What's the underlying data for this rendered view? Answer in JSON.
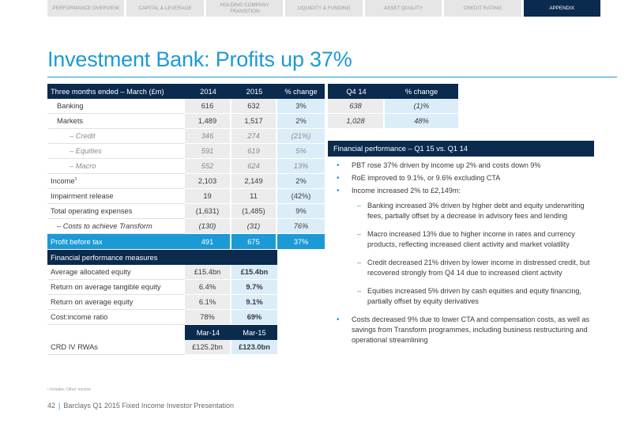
{
  "nav": {
    "tabs": [
      {
        "label": "PERFORMANCE OVERVIEW",
        "active": false
      },
      {
        "label": "CAPITAL & LEVERAGE",
        "active": false
      },
      {
        "label": "HOLDING COMPANY TRANSITION",
        "active": false
      },
      {
        "label": "LIQUIDITY & FUNDING",
        "active": false
      },
      {
        "label": "ASSET QUALITY",
        "active": false
      },
      {
        "label": "CREDIT RATING",
        "active": false
      },
      {
        "label": "APPENDIX",
        "active": true
      }
    ]
  },
  "title": "Investment Bank: Profits up 37%",
  "main_table": {
    "headers": [
      "Three months ended – March (£m)",
      "2014",
      "2015",
      "% change"
    ],
    "rows": [
      {
        "label": "Banking",
        "v2014": "616",
        "v2015": "632",
        "pct": "3%"
      },
      {
        "label": "Markets",
        "v2014": "1,489",
        "v2015": "1,517",
        "pct": "2%"
      },
      {
        "label": "–   Credit",
        "v2014": "346",
        "v2015": "274",
        "pct": "(21%)"
      },
      {
        "label": "–   Equities",
        "v2014": "591",
        "v2015": "619",
        "pct": "5%"
      },
      {
        "label": "–   Macro",
        "v2014": "552",
        "v2015": "624",
        "pct": "13%"
      },
      {
        "label": "Income",
        "v2014": "2,103",
        "v2015": "2,149",
        "pct": "2%"
      },
      {
        "label": "Impairment release",
        "v2014": "19",
        "v2015": "11",
        "pct": "(42%)"
      },
      {
        "label": "Total operating expenses",
        "v2014": "(1,631)",
        "v2015": "(1,485)",
        "pct": "9%"
      },
      {
        "label": "–   Costs to achieve Transform",
        "v2014": "(130)",
        "v2015": "(31)",
        "pct": "76%"
      },
      {
        "label": "Profit before tax",
        "v2014": "491",
        "v2015": "675",
        "pct": "37%"
      }
    ],
    "income_footnote_marker": "1"
  },
  "q4_table": {
    "headers": [
      "Q4 14",
      "% change"
    ],
    "rows": [
      {
        "value": "638",
        "pct": "(1)%"
      },
      {
        "value": "1,028",
        "pct": "48%"
      }
    ]
  },
  "measures": {
    "header": "Financial performance measures",
    "rows": [
      {
        "label": "Average allocated equity",
        "a": "£15.4bn",
        "b": "£15.4bn"
      },
      {
        "label": "Return on average tangible equity",
        "a": "6.4%",
        "b": "9.7%"
      },
      {
        "label": "Return on average equity",
        "a": "6.1%",
        "b": "9.1%"
      },
      {
        "label": "Cost:income ratio",
        "a": "78%",
        "b": "69%"
      }
    ],
    "date_headers": [
      "Mar-14",
      "Mar-15"
    ],
    "rwa_row": {
      "label": "CRD IV RWAs",
      "a": "£125.2bn",
      "b": "£123.0bn"
    }
  },
  "commentary": {
    "header": "Financial performance – Q1 15 vs. Q1 14",
    "bullet_pbt": "PBT rose 37% driven by income up 2% and costs down 9%",
    "bullet_roe": "RoE improved to 9.1%, or 9.6% excluding CTA",
    "bullet_income": "Income increased 2% to £2,149m:",
    "sub_banking": "Banking increased 3% driven by higher debt and equity underwriting fees, partially offset by a decrease in advisory fees and lending",
    "sub_macro": "Macro increased 13% due to higher income in rates and currency products, reflecting increased client activity and market volatility",
    "sub_credit": "Credit decreased 21% driven by lower income in distressed credit, but recovered strongly from Q4 14 due to increased client activity",
    "sub_equities": "Equities increased 5% driven by cash equities and equity financing, partially offset by equity derivatives",
    "bullet_costs": "Costs decreased 9% due to lower CTA and compensation costs, as well as savings from Transform programmes, including business restructuring and operational streamlining"
  },
  "footnote": "¹ Includes 'Other' income",
  "footer": {
    "page_number": "42",
    "text": "Barclays Q1 2015 Fixed Income Investor Presentation"
  },
  "colors": {
    "navy": "#0a2a4e",
    "accent_blue": "#1c9ad6",
    "light_blue": "#dbedf9",
    "light_grey": "#ececec"
  }
}
